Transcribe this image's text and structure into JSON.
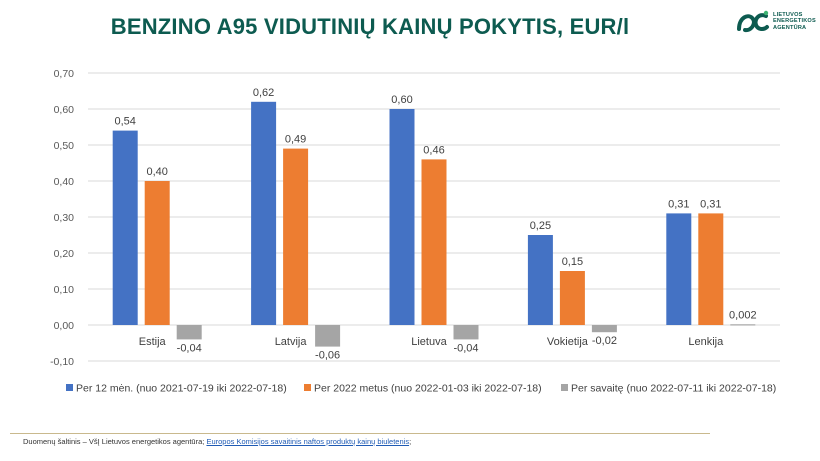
{
  "title": "BENZINO A95 VIDUTINIŲ KAINŲ POKYTIS, EUR/l",
  "logo": {
    "text_lines": [
      "LIETUVOS",
      "ENERGETIKOS",
      "AGENTŪRA"
    ],
    "icon": "lea-logo-icon",
    "color": "#0d5b50"
  },
  "chart_data": {
    "type": "bar",
    "title": "BENZINO A95 VIDUTINIŲ KAINŲ POKYTIS, EUR/l",
    "xlabel": "",
    "ylabel": "",
    "categories": [
      "Estija",
      "Latvija",
      "Lietuva",
      "Vokietija",
      "Lenkija"
    ],
    "ylim": [
      -0.1,
      0.7
    ],
    "yticks": [
      "-0,10",
      "0,00",
      "0,10",
      "0,20",
      "0,30",
      "0,40",
      "0,50",
      "0,60",
      "0,70"
    ],
    "grid": true,
    "legend_position": "bottom",
    "series": [
      {
        "name": "Per 12 mėn. (nuo 2021-07-19 iki 2022-07-18)",
        "color": "#4472c4",
        "values": [
          0.54,
          0.62,
          0.6,
          0.25,
          0.31
        ],
        "labels": [
          "0,54",
          "0,62",
          "0,60",
          "0,25",
          "0,31"
        ]
      },
      {
        "name": "Per 2022 metus (nuo 2022-01-03 iki 2022-07-18)",
        "color": "#ed7d31",
        "values": [
          0.4,
          0.49,
          0.46,
          0.15,
          0.31
        ],
        "labels": [
          "0,40",
          "0,49",
          "0,46",
          "0,15",
          "0,31"
        ]
      },
      {
        "name": "Per savaitę (nuo 2022-07-11 iki 2022-07-18)",
        "color": "#a5a5a5",
        "values": [
          -0.04,
          -0.06,
          -0.04,
          -0.02,
          0.002
        ],
        "labels": [
          "-0,04",
          "-0,06",
          "-0,04",
          "-0,02",
          "0,002"
        ]
      }
    ]
  },
  "footer": {
    "prefix": "Duomenų šaltinis – VšĮ Lietuvos energetikos agentūra; ",
    "link": "Europos Komisijos savaitinis naftos produktų kainų biuletenis",
    "suffix": ";"
  }
}
